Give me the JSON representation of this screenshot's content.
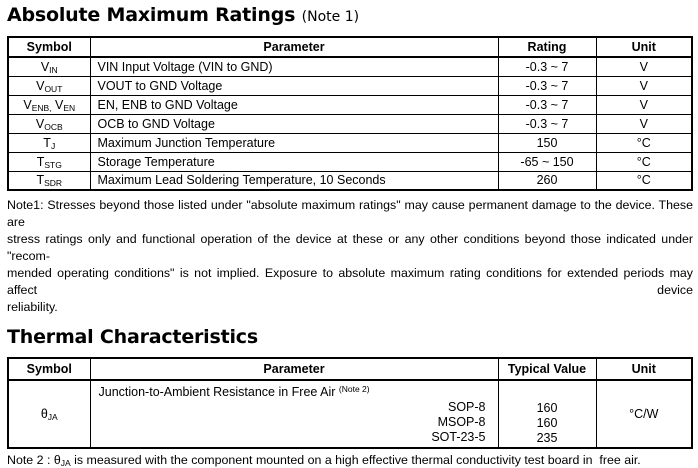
{
  "colors": {
    "text": "#000000",
    "background": "#ffffff",
    "border": "#000000"
  },
  "amr": {
    "title": "Absolute Maximum Ratings",
    "title_note": "(Note 1)",
    "headers": [
      "Symbol",
      "Parameter",
      "Rating",
      "Unit"
    ],
    "rows": [
      {
        "symbol": [
          {
            "t": "V"
          },
          {
            "s": "IN"
          }
        ],
        "parameter": "VIN Input Voltage (VIN to GND)",
        "rating": "-0.3 ~ 7",
        "unit": "V"
      },
      {
        "symbol": [
          {
            "t": "V"
          },
          {
            "s": "OUT"
          }
        ],
        "parameter": "VOUT to GND Voltage",
        "rating": "-0.3 ~ 7",
        "unit": "V"
      },
      {
        "symbol": [
          {
            "t": "V"
          },
          {
            "s": "ENB,"
          },
          {
            "t": " V"
          },
          {
            "s": "EN"
          }
        ],
        "parameter": "EN, ENB to GND Voltage",
        "rating": "-0.3 ~ 7",
        "unit": "V"
      },
      {
        "symbol": [
          {
            "t": "V"
          },
          {
            "s": "OCB"
          }
        ],
        "parameter": "OCB to GND Voltage",
        "rating": "-0.3 ~ 7",
        "unit": "V"
      },
      {
        "symbol": [
          {
            "t": "T"
          },
          {
            "s": "J"
          }
        ],
        "parameter": "Maximum Junction Temperature",
        "rating": "150",
        "unit": "°C"
      },
      {
        "symbol": [
          {
            "t": "T"
          },
          {
            "s": "STG"
          }
        ],
        "parameter": "Storage Temperature",
        "rating": "-65 ~ 150",
        "unit": "°C"
      },
      {
        "symbol": [
          {
            "t": "T"
          },
          {
            "s": "SDR"
          }
        ],
        "parameter": "Maximum Lead Soldering Temperature, 10 Seconds",
        "rating": "260",
        "unit": "°C"
      }
    ],
    "note_lines": [
      "Note1: Stresses beyond those listed under \"absolute maximum ratings\" may cause permanent damage to the device. These are",
      "stress ratings only and functional operation of the device at these or any other conditions beyond those indicated under \"recom-",
      "mended operating conditions\" is not implied. Exposure to absolute maximum rating conditions for extended periods may affect device",
      "reliability."
    ]
  },
  "thermal": {
    "title": "Thermal Characteristics",
    "headers": [
      "Symbol",
      "Parameter",
      "Typical Value",
      "Unit"
    ],
    "row": {
      "symbol": [
        {
          "t": "θ"
        },
        {
          "s": "JA"
        }
      ],
      "parameter": "Junction-to-Ambient Resistance in Free Air",
      "parameter_note": "(Note 2)",
      "packages": [
        "SOP-8",
        "MSOP-8",
        "SOT-23-5"
      ],
      "values": [
        "160",
        "160",
        "235"
      ],
      "unit": "°C/W"
    },
    "note_prefix": "Note 2 : ",
    "note_symbol": [
      {
        "t": "θ"
      },
      {
        "s": "JA"
      }
    ],
    "note_text": " is measured with the component mounted on a high effective thermal conductivity test board in  free air."
  }
}
